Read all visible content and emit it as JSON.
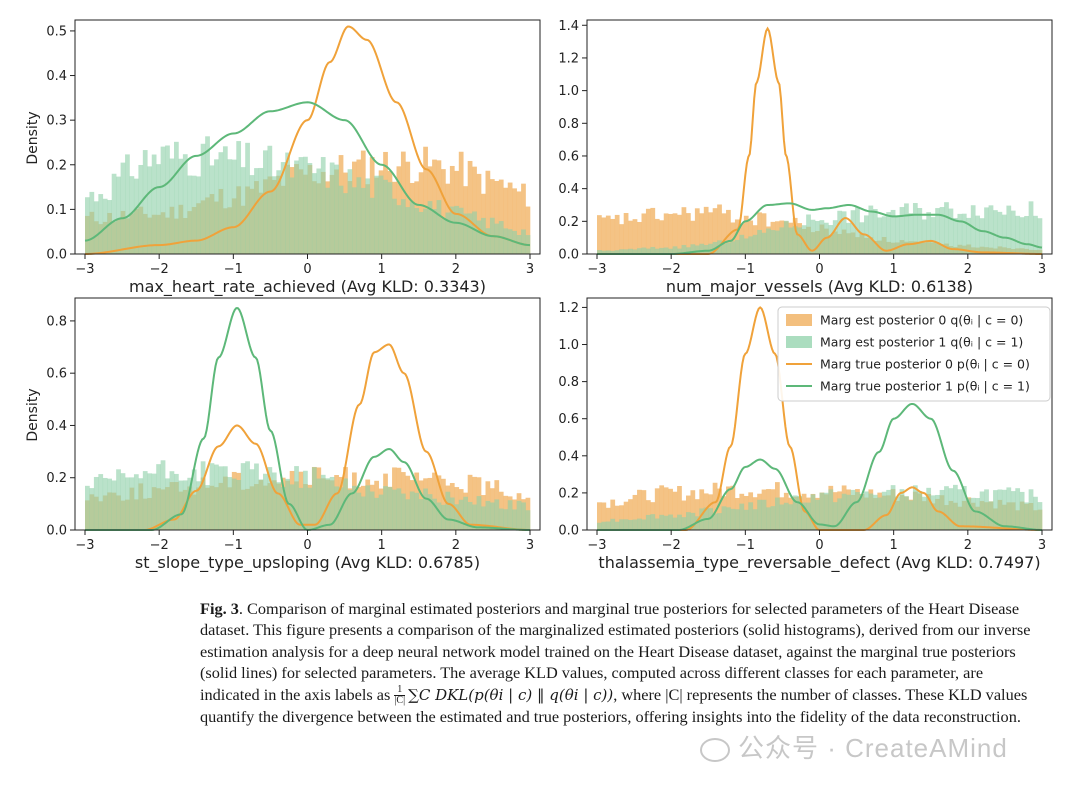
{
  "colors": {
    "est0": "#f2b870",
    "est1": "#8fd1aa",
    "true0": "#f0a23a",
    "true1": "#5db879",
    "axis": "#222222"
  },
  "chart_data": [
    {
      "type": "histogram+kde",
      "xlabel": "max_heart_rate_achieved (Avg KLD: 0.3343)",
      "ylabel": "Density",
      "xlim": [
        -3,
        3
      ],
      "ylim": [
        0,
        0.52
      ],
      "xticks": [
        -3,
        -2,
        -1,
        0,
        1,
        2,
        3
      ],
      "yticks": [
        0.0,
        0.1,
        0.2,
        0.3,
        0.4,
        0.5
      ],
      "ytick_labels": [
        "0.0",
        "0.1",
        "0.2",
        "0.3",
        "0.4",
        "0.5"
      ],
      "hist_est0": {
        "x": [
          -3,
          -2,
          -1,
          0,
          0.5,
          1,
          1.5,
          2,
          2.5,
          3
        ],
        "y": [
          0.08,
          0.09,
          0.13,
          0.18,
          0.19,
          0.2,
          0.2,
          0.19,
          0.16,
          0.13
        ]
      },
      "hist_est1": {
        "x": [
          -3,
          -2,
          -1.5,
          -1,
          0,
          1,
          1.5,
          2,
          2.5,
          3
        ],
        "y": [
          0.13,
          0.22,
          0.22,
          0.21,
          0.19,
          0.15,
          0.12,
          0.09,
          0.07,
          0.05
        ]
      },
      "series": [
        {
          "name": "Marg true posterior 0",
          "x": [
            -3,
            -2,
            -1.5,
            -1,
            -0.5,
            0,
            0.3,
            0.55,
            0.8,
            1.2,
            1.6,
            2,
            2.5,
            3
          ],
          "y": [
            0.0,
            0.02,
            0.03,
            0.06,
            0.14,
            0.3,
            0.43,
            0.51,
            0.48,
            0.34,
            0.19,
            0.09,
            0.04,
            0.02
          ]
        },
        {
          "name": "Marg true posterior 1",
          "x": [
            -3,
            -2.5,
            -2,
            -1.5,
            -1,
            -0.5,
            0,
            0.5,
            1,
            1.5,
            2,
            2.5,
            3
          ],
          "y": [
            0.03,
            0.08,
            0.15,
            0.22,
            0.27,
            0.32,
            0.34,
            0.3,
            0.2,
            0.11,
            0.07,
            0.04,
            0.02
          ]
        }
      ]
    },
    {
      "type": "histogram+kde",
      "xlabel": "num_major_vessels (Avg KLD: 0.6138)",
      "ylabel": "",
      "xlim": [
        -3,
        3
      ],
      "ylim": [
        0,
        1.42
      ],
      "xticks": [
        -3,
        -2,
        -1,
        0,
        1,
        2,
        3
      ],
      "yticks": [
        0.0,
        0.2,
        0.4,
        0.6,
        0.8,
        1.0,
        1.2,
        1.4
      ],
      "ytick_labels": [
        "0.0",
        "0.2",
        "0.4",
        "0.6",
        "0.8",
        "1.0",
        "1.2",
        "1.4"
      ],
      "hist_est0": {
        "x": [
          -3,
          -2,
          -1.5,
          -1,
          -0.5,
          0,
          0.5,
          1,
          1.5,
          2,
          2.5,
          3
        ],
        "y": [
          0.2,
          0.24,
          0.26,
          0.22,
          0.2,
          0.15,
          0.12,
          0.08,
          0.06,
          0.05,
          0.04,
          0.03
        ]
      },
      "hist_est1": {
        "x": [
          -3,
          -2,
          -1.5,
          -1,
          -0.5,
          0,
          0.5,
          1,
          1.5,
          2,
          2.5,
          3
        ],
        "y": [
          0.02,
          0.04,
          0.06,
          0.1,
          0.17,
          0.22,
          0.24,
          0.26,
          0.27,
          0.28,
          0.28,
          0.26
        ]
      },
      "series": [
        {
          "name": "Marg true posterior 0",
          "x": [
            -3,
            -1.5,
            -1.1,
            -0.95,
            -0.85,
            -0.7,
            -0.55,
            -0.45,
            -0.3,
            -0.1,
            0.1,
            0.35,
            0.6,
            0.9,
            1.2,
            1.5,
            1.8,
            2.2,
            3
          ],
          "y": [
            0.0,
            0.0,
            0.15,
            0.6,
            1.05,
            1.38,
            1.05,
            0.6,
            0.12,
            0.02,
            0.1,
            0.22,
            0.12,
            0.02,
            0.06,
            0.08,
            0.03,
            0.01,
            0.0
          ]
        },
        {
          "name": "Marg true posterior 1",
          "x": [
            -3,
            -2,
            -1.5,
            -1.2,
            -1,
            -0.7,
            -0.4,
            -0.1,
            0.1,
            0.4,
            0.7,
            1,
            1.3,
            1.6,
            1.9,
            2.2,
            2.5,
            2.8,
            3
          ],
          "y": [
            0.0,
            0.0,
            0.02,
            0.08,
            0.2,
            0.3,
            0.31,
            0.27,
            0.28,
            0.3,
            0.26,
            0.23,
            0.24,
            0.24,
            0.2,
            0.14,
            0.1,
            0.06,
            0.04
          ]
        }
      ]
    },
    {
      "type": "histogram+kde",
      "xlabel": "st_slope_type_upsloping (Avg KLD: 0.6785)",
      "ylabel": "Density",
      "xlim": [
        -3,
        3
      ],
      "ylim": [
        0,
        0.88
      ],
      "xticks": [
        -3,
        -2,
        -1,
        0,
        1,
        2,
        3
      ],
      "yticks": [
        0.0,
        0.2,
        0.4,
        0.6,
        0.8
      ],
      "ytick_labels": [
        "0.0",
        "0.2",
        "0.4",
        "0.6",
        "0.8"
      ],
      "hist_est0": {
        "x": [
          -3,
          -2,
          -1,
          0,
          1,
          2,
          3
        ],
        "y": [
          0.13,
          0.15,
          0.19,
          0.2,
          0.2,
          0.18,
          0.14
        ]
      },
      "hist_est1": {
        "x": [
          -3,
          -2,
          -1,
          0,
          1,
          2,
          3
        ],
        "y": [
          0.17,
          0.22,
          0.22,
          0.2,
          0.15,
          0.12,
          0.09
        ]
      },
      "series": [
        {
          "name": "Marg true posterior 0",
          "x": [
            -3,
            -2.2,
            -1.8,
            -1.5,
            -1.2,
            -0.95,
            -0.7,
            -0.4,
            -0.1,
            0.1,
            0.4,
            0.7,
            0.9,
            1.1,
            1.3,
            1.6,
            1.9,
            2.2,
            3
          ],
          "y": [
            0.0,
            0.0,
            0.04,
            0.15,
            0.32,
            0.4,
            0.33,
            0.14,
            0.02,
            0.02,
            0.14,
            0.48,
            0.68,
            0.71,
            0.6,
            0.3,
            0.1,
            0.02,
            0.0
          ]
        },
        {
          "name": "Marg true posterior 1",
          "x": [
            -3,
            -2.1,
            -1.7,
            -1.4,
            -1.2,
            -0.95,
            -0.7,
            -0.5,
            -0.25,
            0,
            0.3,
            0.6,
            0.9,
            1.1,
            1.3,
            1.6,
            1.9,
            2.3,
            3
          ],
          "y": [
            0.0,
            0.0,
            0.06,
            0.35,
            0.66,
            0.85,
            0.66,
            0.38,
            0.1,
            0.0,
            0.02,
            0.14,
            0.28,
            0.31,
            0.26,
            0.12,
            0.04,
            0.01,
            0.0
          ]
        }
      ]
    },
    {
      "type": "histogram+kde",
      "xlabel": "thalassemia_type_reversable_defect (Avg KLD: 0.7497)",
      "ylabel": "",
      "xlim": [
        -3,
        3
      ],
      "ylim": [
        0,
        1.24
      ],
      "xticks": [
        -3,
        -2,
        -1,
        0,
        1,
        2,
        3
      ],
      "yticks": [
        0.0,
        0.2,
        0.4,
        0.6,
        0.8,
        1.0,
        1.2
      ],
      "ytick_labels": [
        "0.0",
        "0.2",
        "0.4",
        "0.6",
        "0.8",
        "1.0",
        "1.2"
      ],
      "hist_est0": {
        "x": [
          -3,
          -2,
          -1,
          0,
          1,
          2,
          3
        ],
        "y": [
          0.15,
          0.2,
          0.22,
          0.21,
          0.19,
          0.16,
          0.12
        ]
      },
      "hist_est1": {
        "x": [
          -3,
          -2,
          -1,
          0,
          1,
          2,
          3
        ],
        "y": [
          0.05,
          0.08,
          0.13,
          0.18,
          0.2,
          0.2,
          0.18
        ]
      },
      "series": [
        {
          "name": "Marg true posterior 0",
          "x": [
            -3,
            -1.8,
            -1.4,
            -1.2,
            -1.0,
            -0.8,
            -0.6,
            -0.4,
            -0.2,
            0.0,
            0.6,
            0.9,
            1.1,
            1.25,
            1.4,
            1.6,
            1.9,
            3
          ],
          "y": [
            0.0,
            0.0,
            0.15,
            0.45,
            0.95,
            1.2,
            0.95,
            0.45,
            0.1,
            0.0,
            0.0,
            0.08,
            0.2,
            0.23,
            0.2,
            0.1,
            0.02,
            0.0
          ]
        },
        {
          "name": "Marg true posterior 1",
          "x": [
            -3,
            -1.9,
            -1.5,
            -1.2,
            -1.0,
            -0.8,
            -0.6,
            -0.3,
            0.0,
            0.2,
            0.5,
            0.8,
            1.0,
            1.25,
            1.5,
            1.8,
            2.1,
            2.5,
            3
          ],
          "y": [
            0.0,
            0.0,
            0.06,
            0.22,
            0.34,
            0.38,
            0.33,
            0.15,
            0.03,
            0.02,
            0.15,
            0.42,
            0.6,
            0.68,
            0.6,
            0.32,
            0.1,
            0.02,
            0.0
          ]
        }
      ]
    }
  ],
  "legend": {
    "items": [
      {
        "kind": "patch",
        "color_key": "est0",
        "label": "Marg est posterior 0 q(θᵢ | c = 0)"
      },
      {
        "kind": "patch",
        "color_key": "est1",
        "label": "Marg est posterior 1 q(θᵢ | c = 1)"
      },
      {
        "kind": "line",
        "color_key": "true0",
        "label": "Marg true posterior 0 p(θᵢ | c = 0)"
      },
      {
        "kind": "line",
        "color_key": "true1",
        "label": "Marg true posterior 1 p(θᵢ | c = 1)"
      }
    ]
  },
  "caption": {
    "label": "Fig. 3",
    "text1": ". Comparison of marginal estimated posteriors and marginal true posteriors for selected parameters of the Heart Disease dataset. This figure presents a comparison of the marginalized estimated posteriors (solid histograms), derived from our inverse estimation analysis for a deep neural network model trained on the Heart Disease dataset, against the marginal true posteriors (solid lines) for selected parameters. The average KLD values, computed across different classes for each parameter, are indicated in the axis labels as",
    "frac_num": "1",
    "frac_den": "|C|",
    "formula": "∑C DKL(p(θi | c) ‖ q(θi | c))",
    "text2": ", where |C| represents the number of classes. These KLD values quantify the divergence between the estimated and true posteriors, offering insights into the fidelity of the data reconstruction."
  },
  "watermark": "公众号 · CreateAMind"
}
